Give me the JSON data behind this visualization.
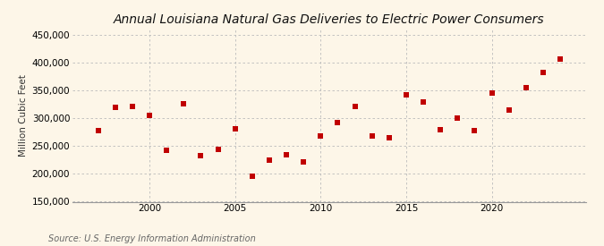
{
  "title": "Annual Louisiana Natural Gas Deliveries to Electric Power Consumers",
  "ylabel": "Million Cubic Feet",
  "source": "Source: U.S. Energy Information Administration",
  "years": [
    1997,
    1998,
    1999,
    2000,
    2001,
    2002,
    2003,
    2004,
    2005,
    2006,
    2007,
    2008,
    2009,
    2010,
    2011,
    2012,
    2013,
    2014,
    2015,
    2016,
    2017,
    2018,
    2019,
    2020,
    2021,
    2022,
    2023,
    2024
  ],
  "values": [
    278000,
    320000,
    321000,
    305000,
    242000,
    326000,
    233000,
    244000,
    282000,
    196000,
    225000,
    235000,
    221000,
    269000,
    292000,
    321000,
    268000,
    265000,
    342000,
    329000,
    280000,
    301000,
    278000,
    345000,
    315000,
    355000,
    382000,
    407000
  ],
  "marker_color": "#c00000",
  "marker_size": 18,
  "grid_color": "#bbbbbb",
  "bg_color": "#fdf6e8",
  "ylim": [
    150000,
    460000
  ],
  "yticks": [
    150000,
    200000,
    250000,
    300000,
    350000,
    400000,
    450000
  ],
  "xlim": [
    1995.5,
    2025.5
  ],
  "xtick_years": [
    2000,
    2005,
    2010,
    2015,
    2020
  ],
  "title_fontsize": 10,
  "label_fontsize": 7.5,
  "tick_fontsize": 7.5,
  "source_fontsize": 7
}
